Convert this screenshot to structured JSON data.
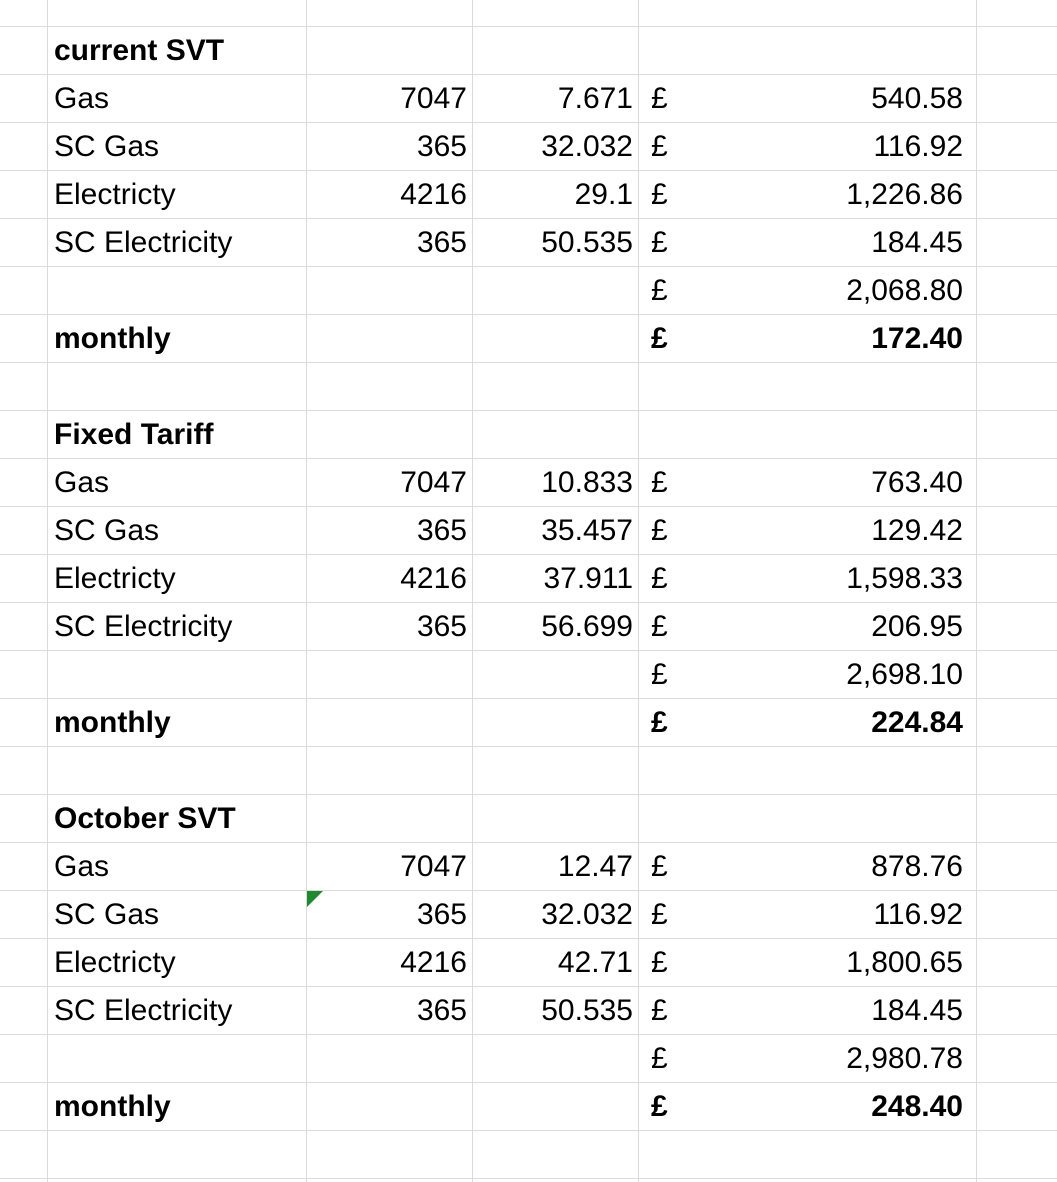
{
  "sections": [
    {
      "title": "current SVT",
      "rows": [
        {
          "label": "Gas",
          "qty": "7047",
          "rate": "7.671",
          "currency": "£",
          "amount": "540.58"
        },
        {
          "label": "SC Gas",
          "qty": "365",
          "rate": "32.032",
          "currency": "£",
          "amount": "116.92"
        },
        {
          "label": "Electricty",
          "qty": "4216",
          "rate": "29.1",
          "currency": "£",
          "amount": "1,226.86"
        },
        {
          "label": "SC Electricity",
          "qty": "365",
          "rate": "50.535",
          "currency": "£",
          "amount": "184.45"
        }
      ],
      "total": {
        "currency": "£",
        "amount": "2,068.80"
      },
      "monthly": {
        "label": "monthly",
        "currency": "£",
        "amount": "172.40"
      }
    },
    {
      "title": "Fixed Tariff",
      "rows": [
        {
          "label": "Gas",
          "qty": "7047",
          "rate": "10.833",
          "currency": "£",
          "amount": "763.40"
        },
        {
          "label": "SC Gas",
          "qty": "365",
          "rate": "35.457",
          "currency": "£",
          "amount": "129.42"
        },
        {
          "label": "Electricty",
          "qty": "4216",
          "rate": "37.911",
          "currency": "£",
          "amount": "1,598.33"
        },
        {
          "label": "SC Electricity",
          "qty": "365",
          "rate": "56.699",
          "currency": "£",
          "amount": "206.95"
        }
      ],
      "total": {
        "currency": "£",
        "amount": "2,698.10"
      },
      "monthly": {
        "label": "monthly",
        "currency": "£",
        "amount": "224.84"
      }
    },
    {
      "title": "October SVT",
      "rows": [
        {
          "label": "Gas",
          "qty": "7047",
          "rate": "12.47",
          "currency": "£",
          "amount": "878.76"
        },
        {
          "label": "SC Gas",
          "qty": "365",
          "rate": "32.032",
          "currency": "£",
          "amount": "116.92"
        },
        {
          "label": "Electricty",
          "qty": "4216",
          "rate": "42.71",
          "currency": "£",
          "amount": "1,800.65"
        },
        {
          "label": "SC Electricity",
          "qty": "365",
          "rate": "50.535",
          "currency": "£",
          "amount": "184.45"
        }
      ],
      "total": {
        "currency": "£",
        "amount": "2,980.78"
      },
      "monthly": {
        "label": "monthly",
        "currency": "£",
        "amount": "248.40"
      }
    }
  ],
  "comment_marker_color": "#1e8a2e"
}
